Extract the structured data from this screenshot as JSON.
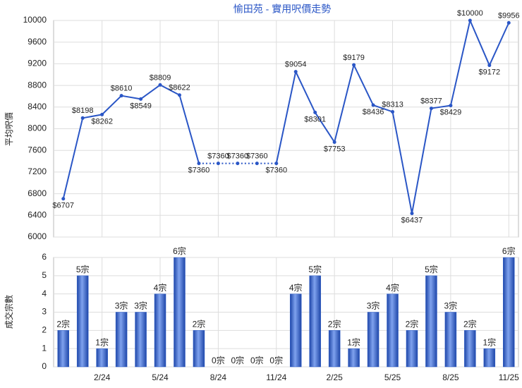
{
  "chart_data": [
    {
      "type": "line",
      "title": "愉田苑 - 實用呎價走勢",
      "ylabel": "平均呎價",
      "color": "#2a56c6",
      "values": [
        6707,
        8198,
        8262,
        8610,
        8549,
        8809,
        8622,
        7360,
        7360,
        7360,
        7360,
        7360,
        9054,
        8301,
        7753,
        9179,
        8436,
        8313,
        6437,
        8377,
        8429,
        10000,
        9172,
        9956
      ],
      "value_labels": [
        "$6707",
        "$8198",
        "$8262",
        "$8610",
        "$8549",
        "$8809",
        "$8622",
        "$7360",
        "$7360",
        "$7360",
        "$7360",
        "$7360",
        "$9054",
        "$8301",
        "$7753",
        "$9179",
        "$8436",
        "$8313",
        "$6437",
        "$8377",
        "$8429",
        "$10000",
        "$9172",
        "$9956"
      ],
      "dotted_range": [
        7,
        11
      ],
      "ylim": [
        6000,
        10000
      ],
      "yticks": [
        6000,
        6400,
        6800,
        7200,
        7600,
        8000,
        8400,
        8800,
        9200,
        9600,
        10000
      ],
      "grid": true
    },
    {
      "type": "bar",
      "ylabel": "成交宗數",
      "color": "#2f5fc9",
      "categories": [
        null,
        null,
        "2/24",
        null,
        null,
        "5/24",
        null,
        null,
        "8/24",
        null,
        null,
        "11/24",
        null,
        null,
        "2/25",
        null,
        null,
        "5/25",
        null,
        null,
        "8/25",
        null,
        null,
        "11/25"
      ],
      "values": [
        2,
        5,
        1,
        3,
        3,
        4,
        6,
        2,
        0,
        0,
        0,
        0,
        4,
        5,
        2,
        1,
        3,
        4,
        2,
        5,
        3,
        2,
        1,
        6
      ],
      "value_labels": [
        "2宗",
        "5宗",
        "1宗",
        "3宗",
        "3宗",
        "4宗",
        "6宗",
        "2宗",
        "0宗",
        "0宗",
        "0宗",
        "0宗",
        "4宗",
        "5宗",
        "2宗",
        "1宗",
        "3宗",
        "4宗",
        "2宗",
        "5宗",
        "3宗",
        "2宗",
        "1宗",
        "6宗"
      ],
      "ylim": [
        0,
        6
      ],
      "yticks": [
        0,
        1,
        2,
        3,
        4,
        5,
        6
      ],
      "grid": true
    }
  ]
}
